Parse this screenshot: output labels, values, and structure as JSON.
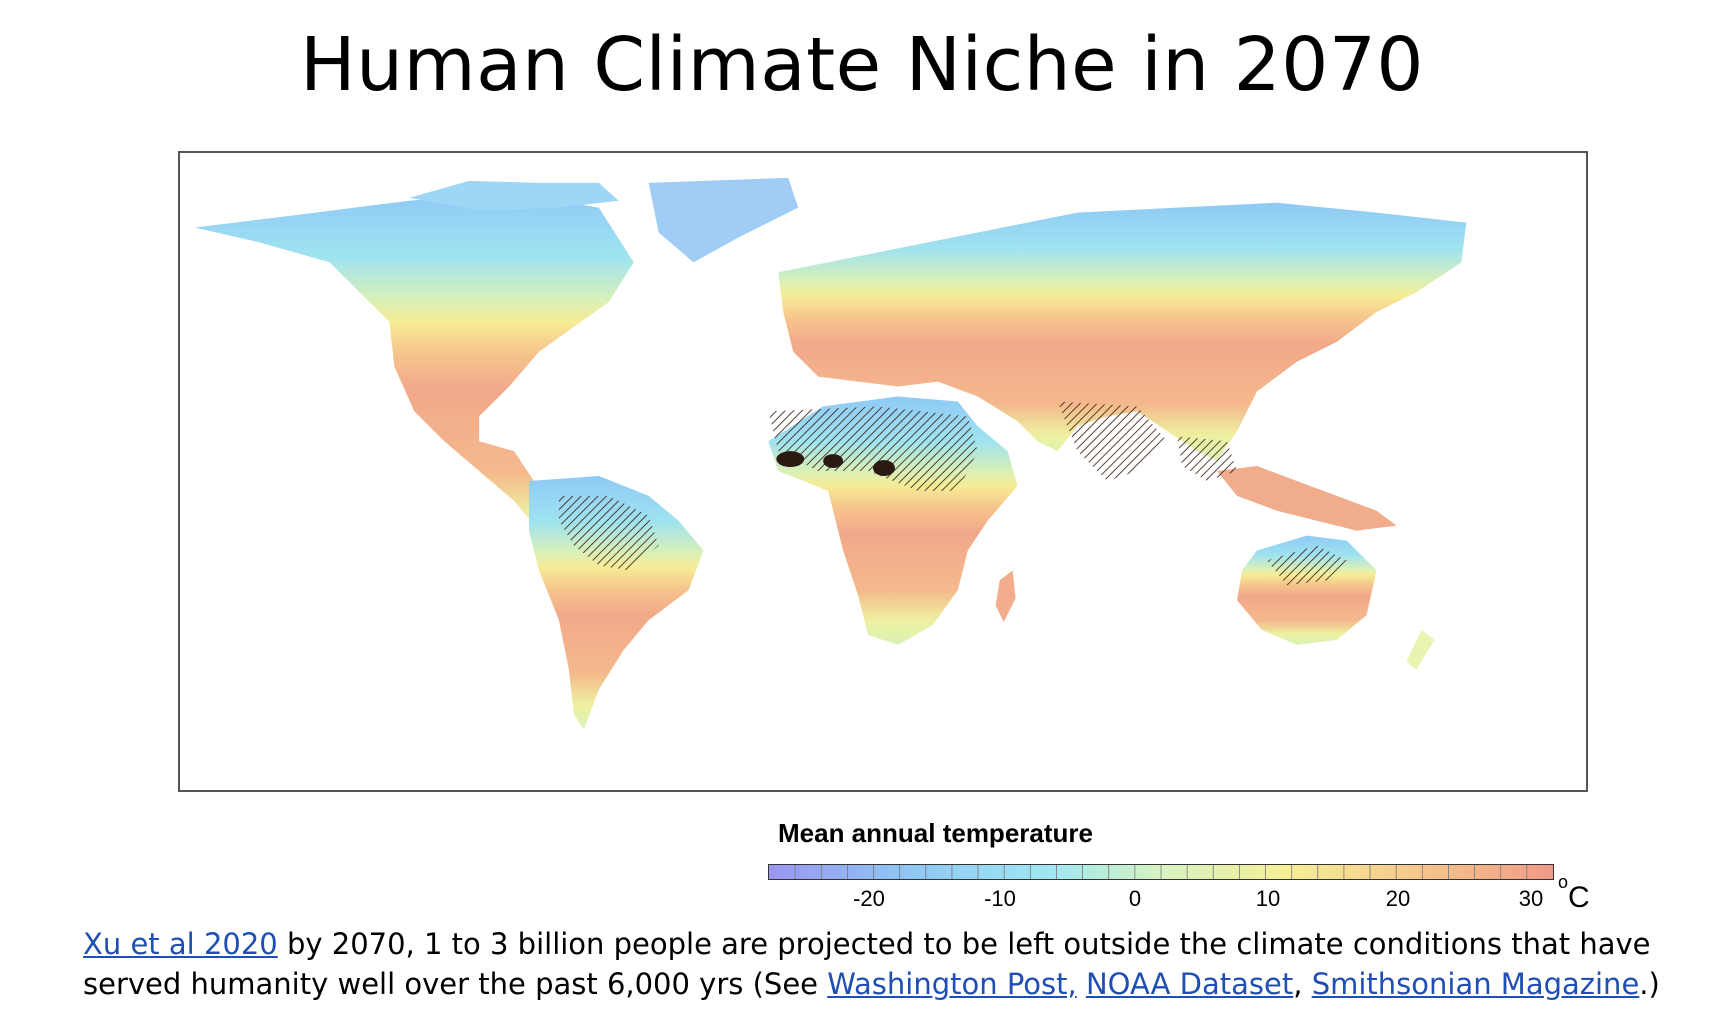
{
  "title": "Human Climate Niche in 2070",
  "legend": {
    "title": "Mean annual temperature",
    "unit": "C",
    "unit_degree": "o",
    "ticks": [
      "-20",
      "-10",
      "0",
      "10",
      "20",
      "30"
    ],
    "range_celsius": [
      -28,
      32
    ],
    "colors": [
      "#9b96f0",
      "#8ec7f5",
      "#9fe8f2",
      "#d7f2c2",
      "#f5ef95",
      "#f6c98c",
      "#f19a88"
    ]
  },
  "map": {
    "type": "world-choropleth",
    "variable": "mean annual temperature",
    "hatched_regions_color": "#2b1a14",
    "hot_color": "#f0a98c",
    "mid_color": "#f6ec95",
    "cold_color": "#9fd6f5"
  },
  "caption": {
    "link1": "Xu et al 2020",
    "text1": " by 2070, 1 to 3 billion people are projected to be left outside the climate conditions that have served humanity well over the past 6,000 yrs (See ",
    "link2": "Washington Post,",
    "sep1": " ",
    "link3": "NOAA Dataset",
    "sep2": ", ",
    "link4": "Smithsonian Magazine",
    "text2": ".)"
  }
}
